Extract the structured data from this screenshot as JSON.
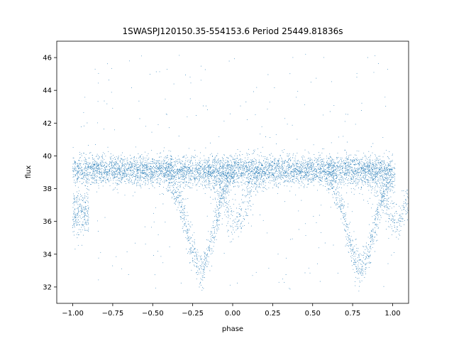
{
  "chart_data": {
    "type": "scatter",
    "title": "1SWASPJ120150.35-554153.6 Period 25449.81836s",
    "xlabel": "phase",
    "ylabel": "flux",
    "xlim": [
      -1.1,
      1.1
    ],
    "ylim": [
      31.0,
      47.0
    ],
    "x_ticks": [
      -1.0,
      -0.75,
      -0.5,
      -0.25,
      0.0,
      0.25,
      0.5,
      0.75,
      1.0
    ],
    "x_tick_labels": [
      "−1.00",
      "−0.75",
      "−0.50",
      "−0.25",
      "0.00",
      "0.25",
      "0.50",
      "0.75",
      "1.00"
    ],
    "y_ticks": [
      32,
      34,
      36,
      38,
      40,
      42,
      44,
      46
    ],
    "y_tick_labels": [
      "32",
      "34",
      "36",
      "38",
      "40",
      "42",
      "44",
      "46"
    ],
    "grid": false,
    "marker_color": "#1f77b4",
    "series": [
      {
        "description_components": [
          {
            "component": "baseline band",
            "x_range": [
              -1.0,
              1.0
            ],
            "y_center": 39.1,
            "y_spread": 0.5
          },
          {
            "component": "primary eclipse branch",
            "x_center": -0.2,
            "depth_y": 33.2,
            "width": 0.12
          },
          {
            "component": "secondary dip",
            "x_center": 0.02,
            "depth_y": 36.0,
            "width": 0.1
          },
          {
            "component": "primary eclipse branch (repeat)",
            "x_center": 0.8,
            "depth_y": 33.2,
            "width": 0.12
          },
          {
            "component": "secondary dip (repeat)",
            "x_center": 1.0,
            "depth_y": 36.0,
            "width": 0.1
          },
          {
            "component": "outlier scatter",
            "y_range": [
              31.8,
              46.3
            ]
          }
        ]
      }
    ]
  }
}
